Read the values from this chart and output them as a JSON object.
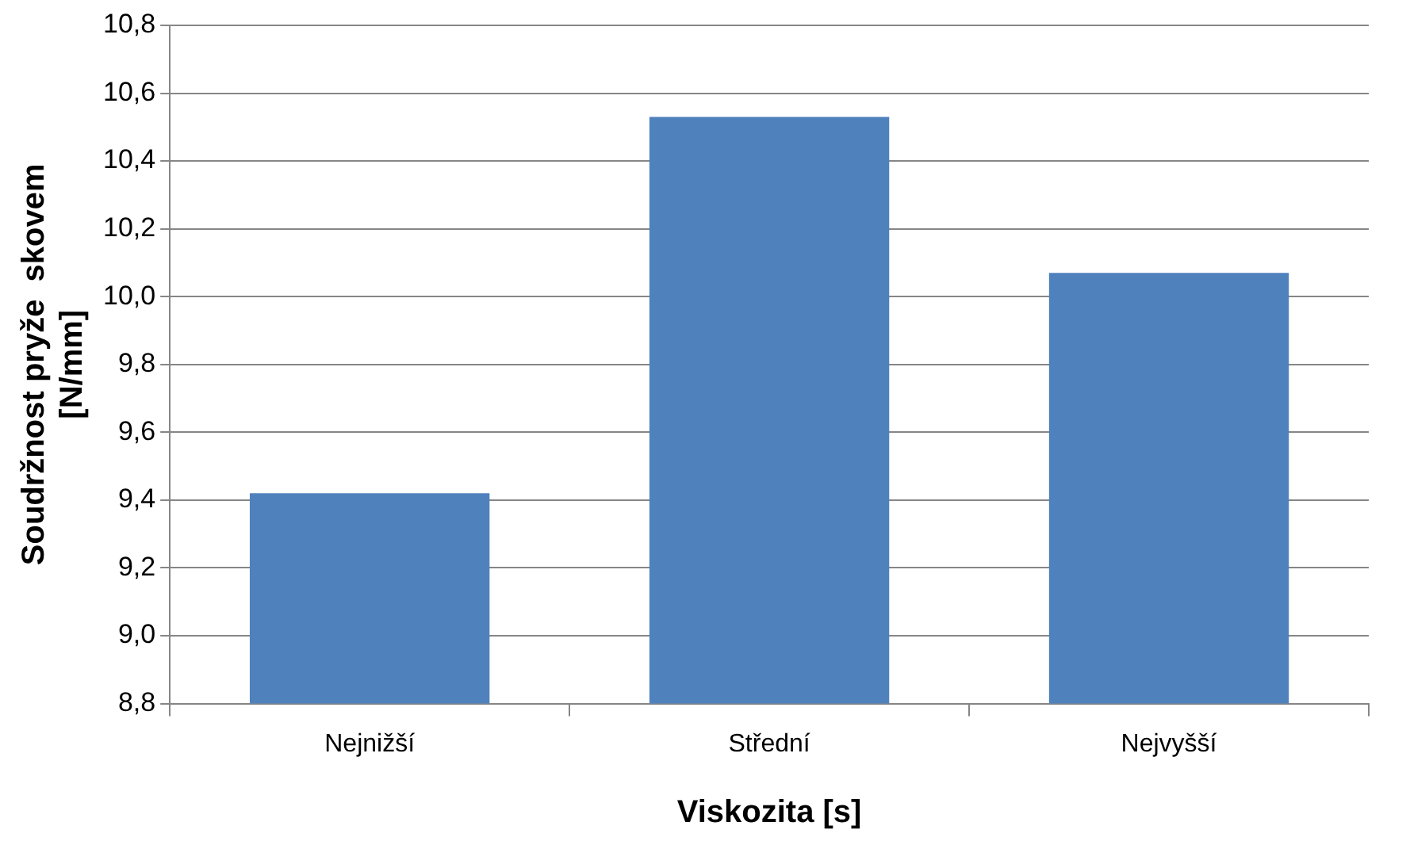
{
  "chart_data": {
    "type": "bar",
    "xlabel": "Viskozita [s]",
    "ylabel": "Soudržnost pryže  skovem\n[N/mm]",
    "categories": [
      "Nejnižší",
      "Střední",
      "Nejvyšší"
    ],
    "values": [
      9.42,
      10.53,
      10.07
    ],
    "color": "#4f81bd",
    "ylim": [
      8.8,
      10.8
    ],
    "yticks": [
      {
        "value": 8.8,
        "label": "8,8"
      },
      {
        "value": 9.0,
        "label": "9,0"
      },
      {
        "value": 9.2,
        "label": "9,2"
      },
      {
        "value": 9.4,
        "label": "9,4"
      },
      {
        "value": 9.6,
        "label": "9,6"
      },
      {
        "value": 9.8,
        "label": "9,8"
      },
      {
        "value": 10.0,
        "label": "10,0"
      },
      {
        "value": 10.2,
        "label": "10,2"
      },
      {
        "value": 10.4,
        "label": "10,4"
      },
      {
        "value": 10.6,
        "label": "10,6"
      },
      {
        "value": 10.8,
        "label": "10,8"
      }
    ],
    "grid": "y",
    "legend": false
  }
}
